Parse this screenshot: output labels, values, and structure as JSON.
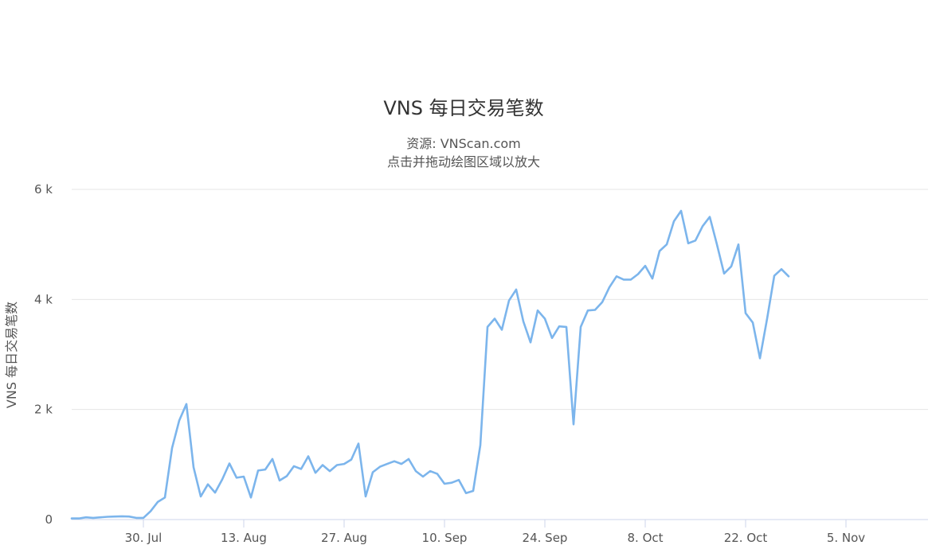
{
  "chart_data": {
    "type": "line",
    "title": "VNS 每日交易笔数",
    "subtitle_lines": [
      "资源: VNScan.com",
      "点击并拖动绘图区域以放大"
    ],
    "ylabel": "VNS 每日交易笔数",
    "xlabel": "",
    "ylim": [
      0,
      6000
    ],
    "y_ticks": [
      {
        "value": 0,
        "label": "0"
      },
      {
        "value": 2000,
        "label": "2 k"
      },
      {
        "value": 4000,
        "label": "4 k"
      },
      {
        "value": 6000,
        "label": "6 k"
      }
    ],
    "x_ticks": [
      {
        "date": "2019-07-30",
        "label": "30. Jul"
      },
      {
        "date": "2019-08-13",
        "label": "13. Aug"
      },
      {
        "date": "2019-08-27",
        "label": "27. Aug"
      },
      {
        "date": "2019-09-10",
        "label": "10. Sep"
      },
      {
        "date": "2019-09-24",
        "label": "24. Sep"
      },
      {
        "date": "2019-10-08",
        "label": "8. Oct"
      },
      {
        "date": "2019-10-22",
        "label": "22. Oct"
      },
      {
        "date": "2019-11-05",
        "label": "5. Nov"
      }
    ],
    "grid": true,
    "legend": "none",
    "series_color": "#7cb5ec",
    "series": [
      {
        "x": [
          "2019-07-20",
          "2019-07-21",
          "2019-07-22",
          "2019-07-23",
          "2019-07-24",
          "2019-07-25",
          "2019-07-26",
          "2019-07-27",
          "2019-07-28",
          "2019-07-29",
          "2019-07-30",
          "2019-07-31",
          "2019-08-01",
          "2019-08-02",
          "2019-08-03",
          "2019-08-04",
          "2019-08-05",
          "2019-08-06",
          "2019-08-07",
          "2019-08-08",
          "2019-08-09",
          "2019-08-10",
          "2019-08-11",
          "2019-08-12",
          "2019-08-13",
          "2019-08-14",
          "2019-08-15",
          "2019-08-16",
          "2019-08-17",
          "2019-08-18",
          "2019-08-19",
          "2019-08-20",
          "2019-08-21",
          "2019-08-22",
          "2019-08-23",
          "2019-08-24",
          "2019-08-25",
          "2019-08-26",
          "2019-08-27",
          "2019-08-28",
          "2019-08-29",
          "2019-08-30",
          "2019-08-31",
          "2019-09-01",
          "2019-09-02",
          "2019-09-03",
          "2019-09-04",
          "2019-09-05",
          "2019-09-06",
          "2019-09-07",
          "2019-09-08",
          "2019-09-09",
          "2019-09-10",
          "2019-09-11",
          "2019-09-12",
          "2019-09-13",
          "2019-09-14",
          "2019-09-15",
          "2019-09-16",
          "2019-09-17",
          "2019-09-18",
          "2019-09-19",
          "2019-09-20",
          "2019-09-21",
          "2019-09-22",
          "2019-09-23",
          "2019-09-24",
          "2019-09-25",
          "2019-09-26",
          "2019-09-27",
          "2019-09-28",
          "2019-09-29",
          "2019-09-30",
          "2019-10-01",
          "2019-10-02",
          "2019-10-03",
          "2019-10-04",
          "2019-10-05",
          "2019-10-06",
          "2019-10-07",
          "2019-10-08",
          "2019-10-09",
          "2019-10-10",
          "2019-10-11",
          "2019-10-12",
          "2019-10-13",
          "2019-10-14",
          "2019-10-15",
          "2019-10-16",
          "2019-10-17",
          "2019-10-18",
          "2019-10-19",
          "2019-10-20",
          "2019-10-21",
          "2019-10-22",
          "2019-10-23",
          "2019-10-24",
          "2019-10-25",
          "2019-10-26",
          "2019-10-27",
          "2019-10-28"
        ],
        "values": [
          20,
          20,
          40,
          30,
          40,
          50,
          55,
          60,
          55,
          30,
          30,
          150,
          320,
          400,
          1300,
          1800,
          2100,
          950,
          420,
          640,
          490,
          730,
          1020,
          760,
          780,
          400,
          890,
          910,
          1100,
          710,
          790,
          970,
          920,
          1150,
          850,
          990,
          880,
          990,
          1010,
          1090,
          1380,
          420,
          860,
          960,
          1010,
          1060,
          1010,
          1100,
          880,
          780,
          880,
          830,
          650,
          670,
          720,
          480,
          520,
          1350,
          3500,
          3650,
          3450,
          3980,
          4180,
          3600,
          3220,
          3800,
          3650,
          3300,
          3510,
          3500,
          1730,
          3500,
          3800,
          3810,
          3950,
          4220,
          4420,
          4360,
          4360,
          4460,
          4610,
          4380,
          4880,
          5000,
          5420,
          5610,
          5020,
          5070,
          5330,
          5500,
          5000,
          4470,
          4600,
          5000,
          3750,
          3580,
          2930,
          3650,
          4430,
          4550,
          4420
        ]
      }
    ]
  }
}
